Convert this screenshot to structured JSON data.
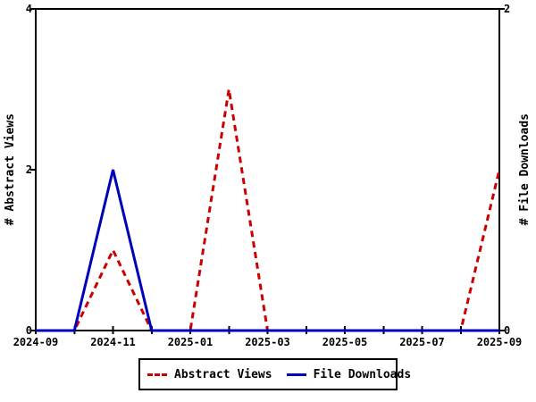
{
  "chart_data": {
    "type": "line",
    "title": "",
    "x": [
      "2024-09",
      "2024-10",
      "2024-11",
      "2024-12",
      "2025-01",
      "2025-02",
      "2025-03",
      "2025-04",
      "2025-05",
      "2025-06",
      "2025-07",
      "2025-08",
      "2025-09"
    ],
    "x_tick_labels": [
      "2024-09",
      "2024-11",
      "2025-01",
      "2025-03",
      "2025-05",
      "2025-07",
      "2025-09"
    ],
    "left_axis": {
      "label": "# Abstract Views",
      "ticks": [
        0,
        2,
        4
      ],
      "range": [
        0,
        4
      ]
    },
    "right_axis": {
      "label": "# File Downloads",
      "ticks": [
        0,
        2
      ],
      "range": [
        0,
        2
      ]
    },
    "series": [
      {
        "name": "Abstract Views",
        "axis": "left",
        "color": "#cc0000",
        "style": "dashed",
        "values": [
          0,
          0,
          1,
          0,
          0,
          3,
          0,
          0,
          0,
          0,
          0,
          0,
          2
        ]
      },
      {
        "name": "File Downloads",
        "axis": "right",
        "color": "#0000bb",
        "style": "solid",
        "values": [
          0,
          0,
          1,
          0,
          0,
          0,
          0,
          0,
          0,
          0,
          0,
          0,
          0
        ]
      }
    ],
    "legend": {
      "position": "bottom-center",
      "entries": [
        "Abstract Views",
        "File Downloads"
      ]
    },
    "grid": false,
    "background": "#ffffff",
    "frame_color": "#000000"
  }
}
